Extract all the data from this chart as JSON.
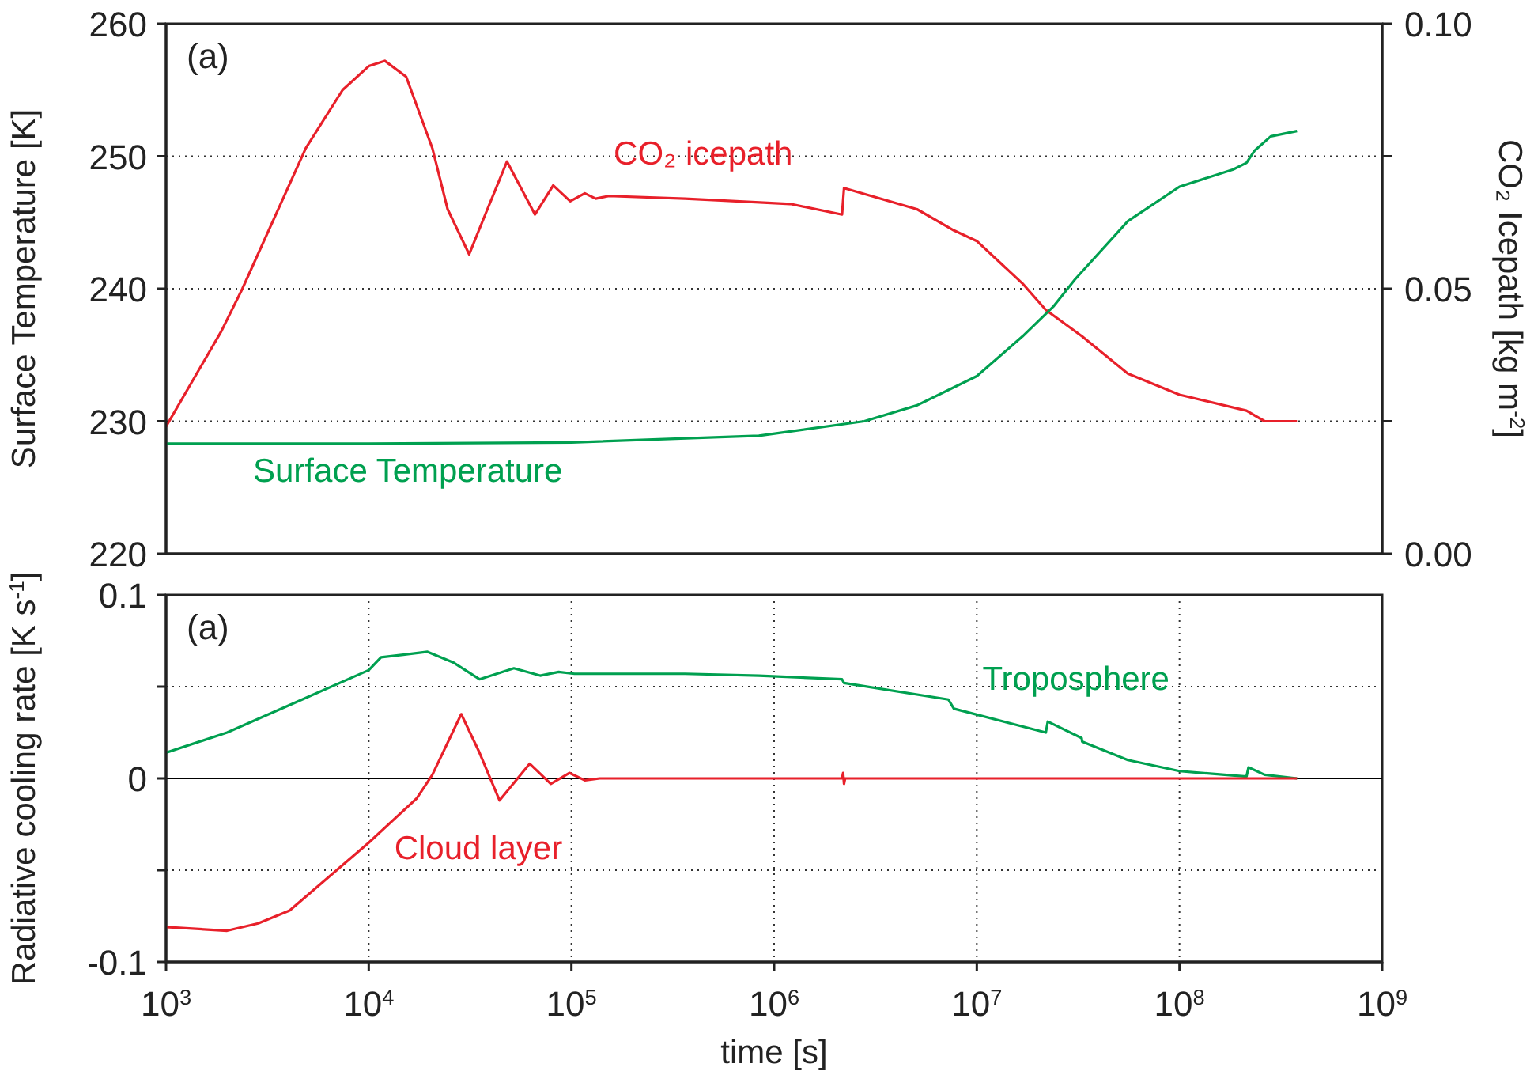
{
  "chart_data": [
    {
      "type": "line",
      "ylabel": "Surface Temperature [K]",
      "y2label": "CO₂ Icepath [kg m$^{-2}$]",
      "annotations": [
        "(a)"
      ],
      "log": "x",
      "grid": true,
      "marker": "none",
      "tick_labels": "y",
      "xlim": [
        1000,
        1000000000
      ],
      "xticks": [
        {
          "value": 1000,
          "label": null
        },
        {
          "value": 10000,
          "label": null
        },
        {
          "value": 100000,
          "label": null
        },
        {
          "value": 1000000,
          "label": null
        },
        {
          "value": 10000000,
          "label": null
        },
        {
          "value": 100000000,
          "label": null
        },
        {
          "value": 1000000000,
          "label": null
        }
      ],
      "ylim": [
        220,
        260
      ],
      "yticks": [
        220,
        230,
        240,
        250,
        260
      ],
      "y2lim": [
        0,
        0.1
      ],
      "y2ticks": [
        {
          "value": 0,
          "label": "0.00"
        },
        {
          "value": 0.025,
          "label": null
        },
        {
          "value": 0.05,
          "label": "0.05"
        },
        {
          "value": 0.075,
          "label": null
        },
        {
          "value": 0.1,
          "label": "0.10"
        }
      ],
      "series": [
        {
          "name": "CO₂ icepath",
          "color": "#e8202a",
          "axis": "y2",
          "x": [
            1000,
            1875,
            2380,
            4890,
            7430,
            10000,
            12000,
            15300,
            20600,
            24500,
            31300,
            38500,
            48100,
            66100,
            81300,
            98600,
            116400,
            131800,
            153100,
            363000,
            1202000,
            2163000,
            2213000,
            5070000,
            7710000,
            10000000,
            16800000,
            21900000,
            33100000,
            55600000,
            100000000,
            214000000,
            263000000,
            380000000
          ],
          "values": [
            0.024,
            0.042,
            0.05,
            0.0765,
            0.0875,
            0.092,
            0.093,
            0.09,
            0.0765,
            0.065,
            0.0565,
            0.065,
            0.074,
            0.064,
            0.0695,
            0.0665,
            0.068,
            0.067,
            0.0675,
            0.067,
            0.066,
            0.064,
            0.069,
            0.065,
            0.061,
            0.059,
            0.051,
            0.046,
            0.041,
            0.034,
            0.03,
            0.027,
            0.025,
            0.025
          ]
        },
        {
          "name": "Surface Temperature",
          "color": "#00a050",
          "x": [
            1000,
            10000,
            100000,
            841000,
            2786000,
            5070000,
            10000000,
            16800000,
            24000000,
            30500000,
            55600000,
            100000000,
            184000000,
            214000000,
            234000000,
            282000000,
            380000000
          ],
          "values": [
            228.3,
            228.3,
            228.4,
            228.9,
            230.0,
            231.2,
            233.4,
            236.4,
            238.7,
            240.7,
            245.1,
            247.7,
            249.0,
            249.5,
            250.4,
            251.5,
            251.9
          ]
        }
      ]
    },
    {
      "type": "line",
      "xlabel": "time [s]",
      "ylabel": "Radiative cooling rate [K s$^{-1}$]",
      "annotations": [
        "(a)"
      ],
      "log": "x",
      "grid": true,
      "marker": "none",
      "xlim": [
        1000,
        1000000000
      ],
      "xticks": [
        {
          "value": 1000,
          "label": "10$^{3}$"
        },
        {
          "value": 10000,
          "label": "10$^{4}$"
        },
        {
          "value": 100000,
          "label": "10$^{5}$"
        },
        {
          "value": 1000000,
          "label": "10$^{6}$"
        },
        {
          "value": 10000000,
          "label": "10$^{7}$"
        },
        {
          "value": 100000000,
          "label": "10$^{8}$"
        },
        {
          "value": 1000000000,
          "label": "10$^{9}$"
        }
      ],
      "ylim": [
        -0.1,
        0.1
      ],
      "yticks": [
        -0.1,
        {
          "value": -0.05,
          "label": null
        },
        0,
        {
          "value": 0.05,
          "label": null
        },
        0.1
      ],
      "ref_lines": [
        {
          "axis": "y",
          "value": 0,
          "color": "#000000"
        }
      ],
      "series": [
        {
          "name": "Troposphere",
          "color": "#00a050",
          "x": [
            1000,
            2000,
            4070,
            10000,
            11500,
            19500,
            26300,
            35200,
            52000,
            70100,
            86500,
            103500,
            363000,
            841000,
            2163000,
            2213000,
            7240000,
            7710000,
            21900000,
            22400000,
            32900000,
            33100000,
            55600000,
            100000000,
            214000000,
            219000000,
            263000000,
            380000000
          ],
          "values": [
            0.014,
            0.025,
            0.04,
            0.059,
            0.066,
            0.069,
            0.063,
            0.054,
            0.06,
            0.056,
            0.058,
            0.057,
            0.057,
            0.056,
            0.054,
            0.052,
            0.043,
            0.038,
            0.025,
            0.031,
            0.022,
            0.02,
            0.01,
            0.004,
            0.001,
            0.006,
            0.002,
            0
          ]
        },
        {
          "name": "Cloud layer",
          "color": "#e8202a",
          "x": [
            1000,
            2000,
            2850,
            4070,
            10000,
            17200,
            20600,
            28600,
            35200,
            44200,
            62200,
            79100,
            97700,
            116400,
            138000,
            2163000,
            2190000,
            2213000,
            2240000,
            380000000
          ],
          "values": [
            -0.081,
            -0.083,
            -0.079,
            -0.072,
            -0.035,
            -0.011,
            0.002,
            0.035,
            0.014,
            -0.012,
            0.008,
            -0.003,
            0.003,
            -0.001,
            0,
            0,
            0.003,
            -0.003,
            0,
            0
          ]
        }
      ]
    }
  ]
}
